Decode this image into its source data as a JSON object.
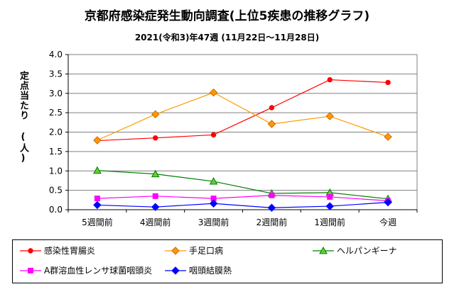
{
  "chart_data": {
    "type": "line",
    "title": "京都府感染症発生動向調査(上位5疾患の推移グラフ)",
    "subtitle": "2021(令和3)年47週 (11月22日～11月28日)",
    "ylabel": "定点当たり (人)",
    "xlabel": "",
    "categories": [
      "5週間前",
      "4週間前",
      "3週間前",
      "2週間前",
      "1週間前",
      "今週"
    ],
    "ylim": [
      0,
      4.0
    ],
    "yticks": [
      "0.0",
      "0.5",
      "1.0",
      "1.5",
      "2.0",
      "2.5",
      "3.0",
      "3.5",
      "4.0"
    ],
    "grid": "horizontal",
    "legend_position": "bottom",
    "series": [
      {
        "name": "感染性胃腸炎",
        "color": "#ff0000",
        "marker": "circle",
        "values": [
          1.78,
          1.85,
          1.93,
          2.63,
          3.35,
          3.28
        ]
      },
      {
        "name": "手足口病",
        "color": "#ff9900",
        "marker": "diamond",
        "values": [
          1.79,
          2.46,
          3.02,
          2.21,
          2.41,
          1.88
        ]
      },
      {
        "name": "ヘルパンギーナ",
        "color": "#008000",
        "marker": "triangle",
        "values": [
          1.01,
          0.92,
          0.73,
          0.42,
          0.44,
          0.28
        ]
      },
      {
        "name": "A群溶血性レンサ球菌咽頭炎",
        "color": "#ff00ff",
        "marker": "square",
        "values": [
          0.29,
          0.35,
          0.29,
          0.37,
          0.33,
          0.23
        ]
      },
      {
        "name": "咽頭結膜熱",
        "color": "#0000ff",
        "marker": "diamond",
        "values": [
          0.12,
          0.07,
          0.16,
          0.05,
          0.09,
          0.19
        ]
      }
    ]
  }
}
